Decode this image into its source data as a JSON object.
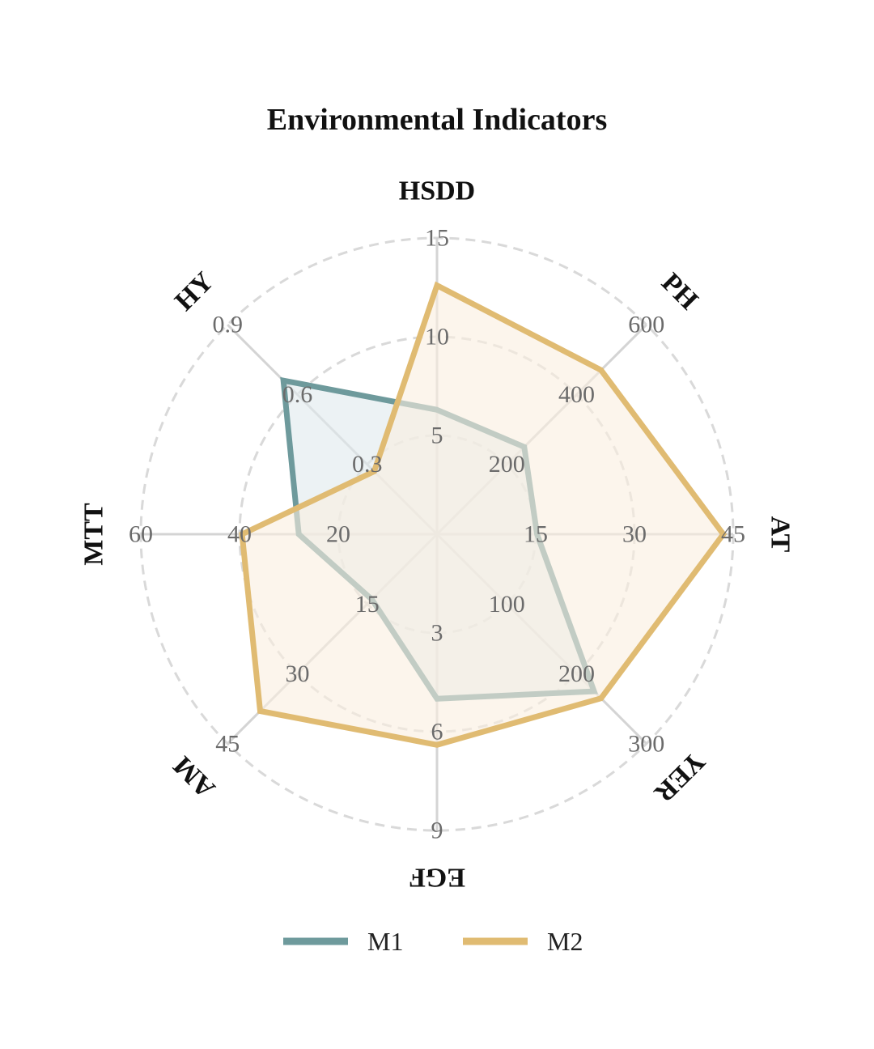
{
  "chart_data": {
    "type": "radar",
    "title": "Environmental Indicators",
    "axes": [
      {
        "name": "HSDD",
        "ticks": [
          "5",
          "10",
          "15"
        ],
        "max": 15
      },
      {
        "name": "PH",
        "ticks": [
          "200",
          "400",
          "600"
        ],
        "max": 600
      },
      {
        "name": "AT",
        "ticks": [
          "15",
          "30",
          "45"
        ],
        "max": 45
      },
      {
        "name": "YER",
        "ticks": [
          "100",
          "200",
          "300"
        ],
        "max": 300
      },
      {
        "name": "EGF",
        "ticks": [
          "3",
          "6",
          "9"
        ],
        "max": 9
      },
      {
        "name": "AM",
        "ticks": [
          "15",
          "30",
          "45"
        ],
        "max": 45
      },
      {
        "name": "MTT",
        "ticks": [
          "20",
          "40",
          "60"
        ],
        "max": 60
      },
      {
        "name": "HY",
        "ticks": [
          "0.3",
          "0.6",
          "0.9"
        ],
        "max": 0.9
      }
    ],
    "series": [
      {
        "name": "M1",
        "color": "#6e9a9c",
        "fill": "#dfe9ec",
        "values": [
          6.3,
          250,
          15.2,
          225,
          5.0,
          14,
          28,
          0.66
        ]
      },
      {
        "name": "M2",
        "color": "#e0bb72",
        "fill": "#faefdf",
        "values": [
          12.6,
          470,
          43.5,
          235,
          6.4,
          38,
          39.5,
          0.27
        ]
      }
    ],
    "grid": true,
    "grid_style": "dashed",
    "legend_position": "bottom"
  }
}
